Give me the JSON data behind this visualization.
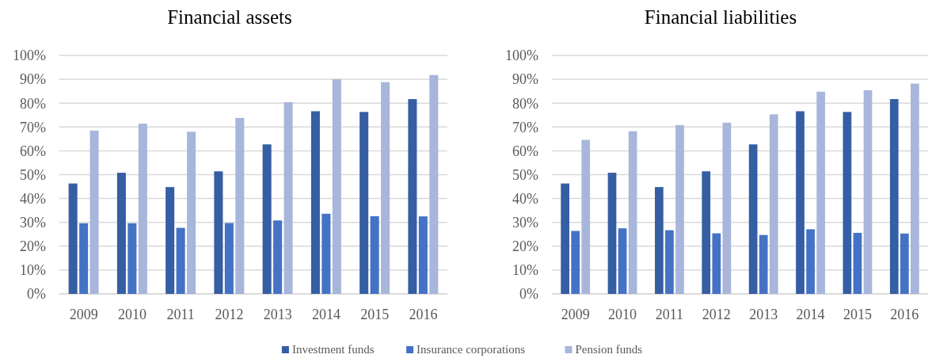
{
  "chart_data": [
    {
      "type": "bar",
      "title": "Financial assets",
      "categories": [
        "2009",
        "2010",
        "2011",
        "2012",
        "2013",
        "2014",
        "2015",
        "2016"
      ],
      "series": [
        {
          "name": "Investment funds",
          "color": "#355ea3",
          "values": [
            46.3,
            50.8,
            44.8,
            51.4,
            62.7,
            76.6,
            76.3,
            81.7
          ]
        },
        {
          "name": "Insurance corporations",
          "color": "#4472c4",
          "values": [
            29.6,
            29.6,
            27.7,
            29.7,
            30.8,
            33.6,
            32.6,
            32.5
          ]
        },
        {
          "name": "Pension funds",
          "color": "#a7b6da",
          "values": [
            68.5,
            71.4,
            68.0,
            73.8,
            80.4,
            90.0,
            88.8,
            91.8
          ]
        }
      ],
      "ylim": [
        0,
        100
      ],
      "yticks": [
        {
          "value": 0,
          "label": "0%"
        },
        {
          "value": 10,
          "label": "10%"
        },
        {
          "value": 20,
          "label": "20%"
        },
        {
          "value": 30,
          "label": "30%"
        },
        {
          "value": 40,
          "label": "40%"
        },
        {
          "value": 50,
          "label": "50%"
        },
        {
          "value": 60,
          "label": "60%"
        },
        {
          "value": 70,
          "label": "70%"
        },
        {
          "value": 80,
          "label": "80%"
        },
        {
          "value": 90,
          "label": "90%"
        },
        {
          "value": 100,
          "label": "100%"
        }
      ],
      "grid": "y",
      "legend": "bottom"
    },
    {
      "type": "bar",
      "title": "Financial liabilities",
      "categories": [
        "2009",
        "2010",
        "2011",
        "2012",
        "2013",
        "2014",
        "2015",
        "2016"
      ],
      "series": [
        {
          "color": "#355ea3",
          "values": [
            46.3,
            50.8,
            44.8,
            51.4,
            62.7,
            76.6,
            76.3,
            81.7
          ]
        },
        {
          "color": "#4472c4",
          "values": [
            26.4,
            27.5,
            26.7,
            25.4,
            24.7,
            27.1,
            25.6,
            25.3
          ]
        },
        {
          "color": "#a7b6da",
          "values": [
            64.6,
            68.2,
            70.8,
            71.8,
            75.3,
            84.8,
            85.4,
            88.2
          ]
        }
      ],
      "ylim": [
        0,
        100
      ],
      "yticks": [
        {
          "value": 0,
          "label": "0%"
        },
        {
          "value": 10,
          "label": "10%"
        },
        {
          "value": 20,
          "label": "20%"
        },
        {
          "value": 30,
          "label": "30%"
        },
        {
          "value": 40,
          "label": "40%"
        },
        {
          "value": 50,
          "label": "50%"
        },
        {
          "value": 60,
          "label": "60%"
        },
        {
          "value": 70,
          "label": "70%"
        },
        {
          "value": 80,
          "label": "80%"
        },
        {
          "value": 90,
          "label": "90%"
        },
        {
          "value": 100,
          "label": "100%"
        }
      ],
      "grid": "y"
    }
  ]
}
